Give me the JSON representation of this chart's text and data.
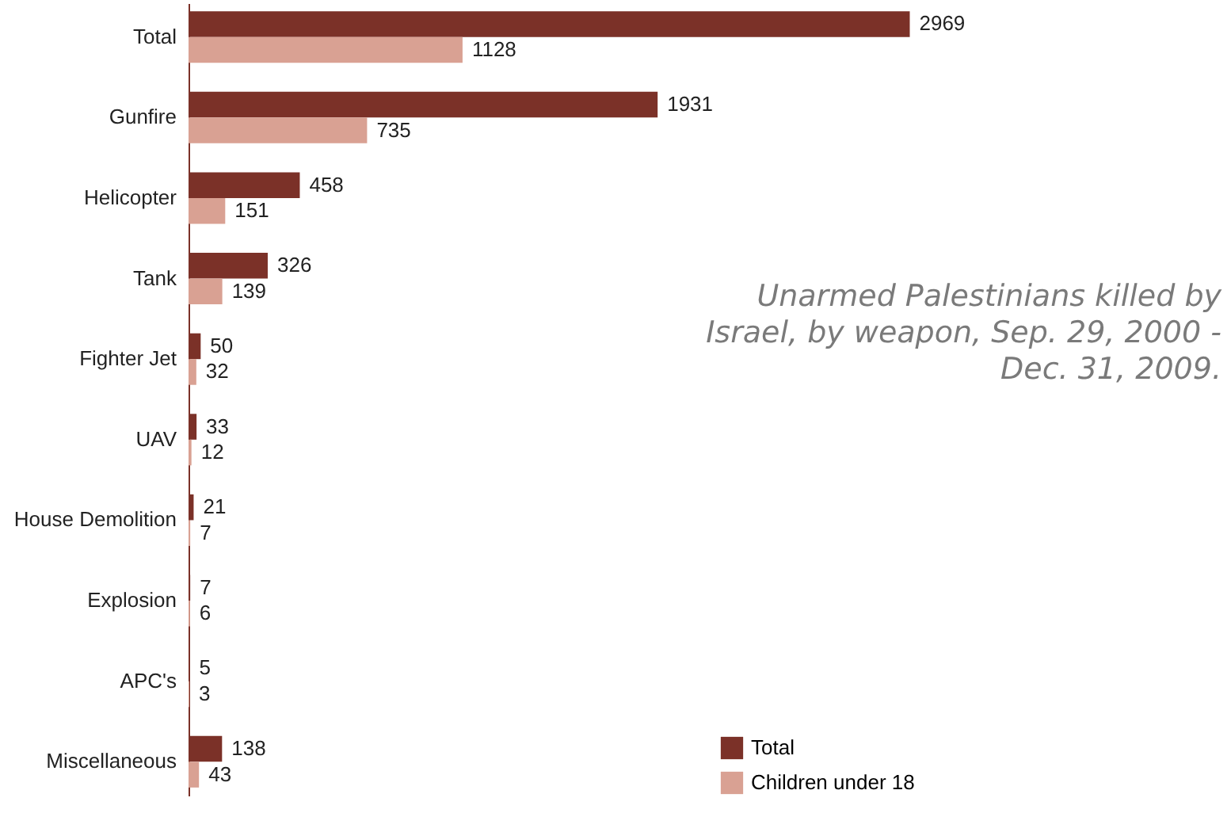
{
  "chart_data": {
    "type": "bar",
    "orientation": "horizontal",
    "title": "Unarmed Palestinians killed by Israel, by weapon, Sep. 29, 2000 - Dec. 31, 2009.",
    "categories": [
      "Total",
      "Gunfire",
      "Helicopter",
      "Tank",
      "Fighter Jet",
      "UAV",
      "House Demolition",
      "Explosion",
      "APC's",
      "Miscellaneous"
    ],
    "series": [
      {
        "name": "Total",
        "color": "#7b3128",
        "values": [
          2969,
          1931,
          458,
          326,
          50,
          33,
          21,
          7,
          5,
          138
        ]
      },
      {
        "name": "Children under 18",
        "color": "#d9a193",
        "values": [
          1128,
          735,
          151,
          139,
          32,
          12,
          7,
          6,
          3,
          43
        ]
      }
    ],
    "data_labels": true,
    "legend": "bottom right",
    "tick_labels": "y"
  }
}
